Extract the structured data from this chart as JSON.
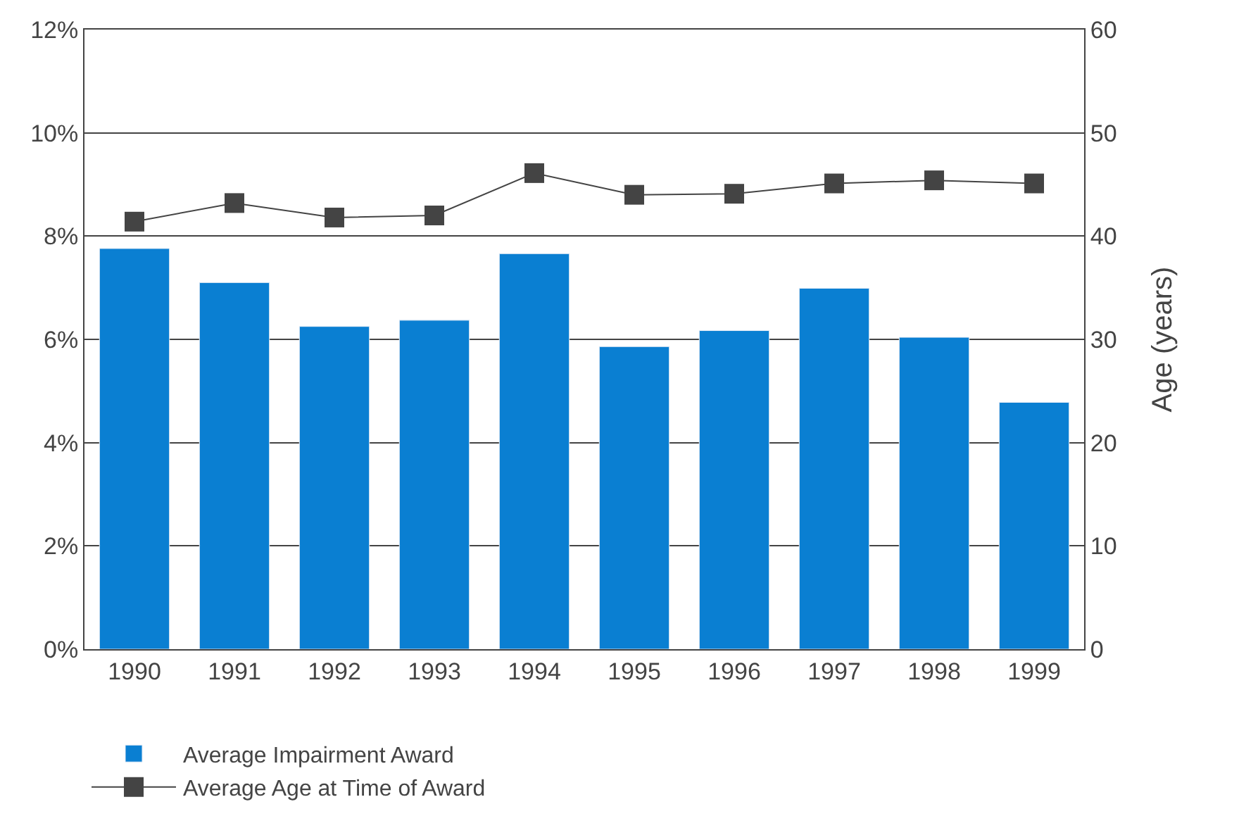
{
  "chart_data": {
    "type": "bar",
    "categories": [
      "1990",
      "1991",
      "1992",
      "1993",
      "1994",
      "1995",
      "1996",
      "1997",
      "1998",
      "1999"
    ],
    "series": [
      {
        "name": "Average Impairment Award",
        "color": "#0a7fd2",
        "values": [
          7.76,
          7.1,
          6.25,
          6.37,
          7.66,
          5.86,
          6.17,
          6.99,
          6.04,
          4.78
        ]
      },
      {
        "name": "Average Age at Time of Award",
        "type": "line",
        "axis": "y2",
        "color": "#444444",
        "marker": "square",
        "values": [
          41.4,
          43.2,
          41.8,
          42.0,
          46.1,
          44.0,
          44.1,
          45.1,
          45.4,
          45.1
        ]
      }
    ],
    "ylim": [
      0,
      12
    ],
    "yticks": [
      {
        "value": 0,
        "label": "0%"
      },
      {
        "value": 2,
        "label": "2%"
      },
      {
        "value": 4,
        "label": "4%"
      },
      {
        "value": 6,
        "label": "6%"
      },
      {
        "value": 8,
        "label": "8%"
      },
      {
        "value": 10,
        "label": "10%"
      },
      {
        "value": 12,
        "label": "12%"
      }
    ],
    "y2lim": [
      0,
      60
    ],
    "y2ticks": [
      0,
      10,
      20,
      30,
      40,
      50,
      60
    ],
    "y2label": "Age (years)",
    "grid": "y",
    "legend": "bottom"
  }
}
